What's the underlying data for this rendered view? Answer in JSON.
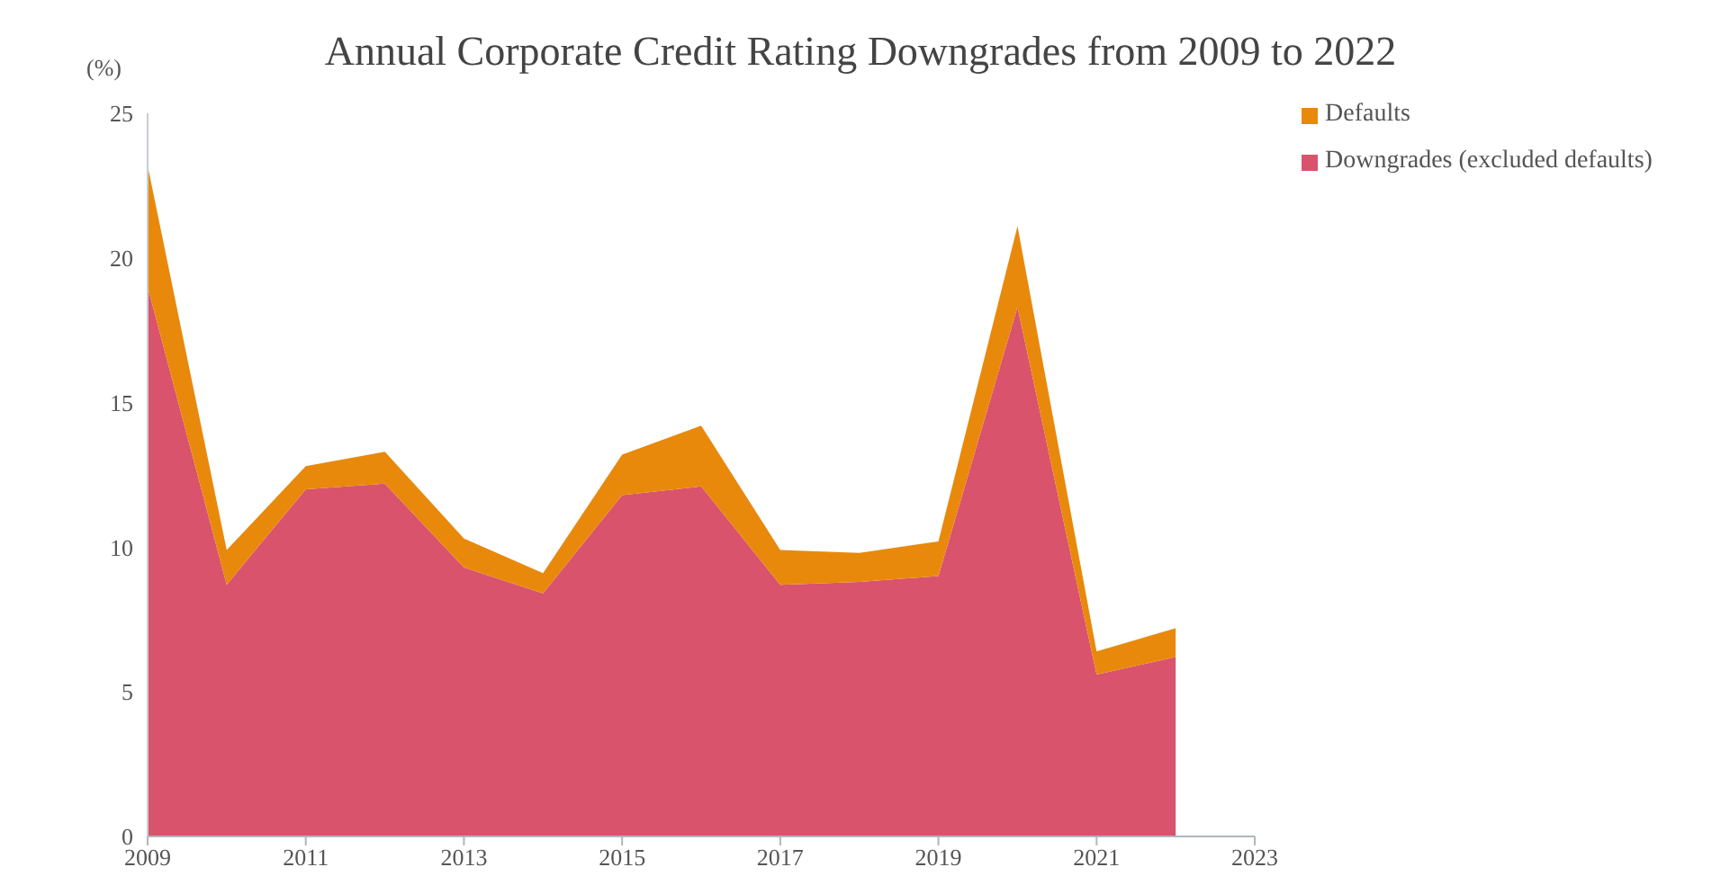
{
  "chart_data": {
    "type": "area",
    "title": "Annual Corporate Credit Rating Downgrades from 2009 to 2022",
    "ylabel": "(%)",
    "x": [
      2009,
      2010,
      2011,
      2012,
      2013,
      2014,
      2015,
      2016,
      2017,
      2018,
      2019,
      2020,
      2021,
      2022
    ],
    "stacked": true,
    "series": [
      {
        "name": "Downgrades (excluded defaults)",
        "color": "#d9536d",
        "values": [
          19.0,
          8.7,
          12.0,
          12.2,
          9.3,
          8.4,
          11.8,
          12.1,
          8.7,
          8.8,
          9.0,
          18.3,
          5.6,
          6.2
        ]
      },
      {
        "name": "Defaults",
        "color": "#e8890c",
        "values": [
          4.2,
          1.2,
          0.8,
          1.1,
          1.0,
          0.7,
          1.4,
          2.1,
          1.2,
          1.0,
          1.2,
          2.8,
          0.8,
          1.0
        ]
      }
    ],
    "xlim": [
      2009,
      2023
    ],
    "xticks": [
      2009,
      2011,
      2013,
      2015,
      2017,
      2019,
      2021,
      2023
    ],
    "ylim": [
      0,
      25
    ],
    "yticks": [
      0,
      5,
      10,
      15,
      20,
      25
    ],
    "grid": false,
    "legend": "top right"
  }
}
